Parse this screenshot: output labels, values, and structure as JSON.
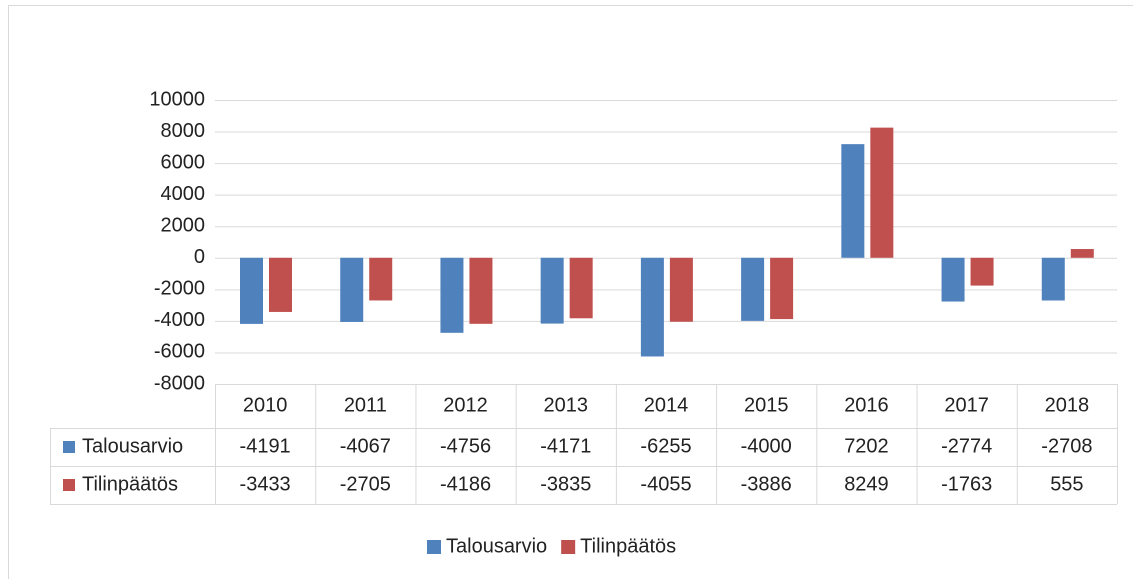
{
  "chart_data": {
    "type": "bar",
    "categories": [
      "2010",
      "2011",
      "2012",
      "2013",
      "2014",
      "2015",
      "2016",
      "2017",
      "2018"
    ],
    "series": [
      {
        "name": "Talousarvio",
        "color": "#4f81bd",
        "values": [
          -4191,
          -4067,
          -4756,
          -4171,
          -6255,
          -4000,
          7202,
          -2774,
          -2708
        ]
      },
      {
        "name": "Tilinpäätös",
        "color": "#c0504d",
        "values": [
          -3433,
          -2705,
          -4186,
          -3835,
          -4055,
          -3886,
          8249,
          -1763,
          555
        ]
      }
    ],
    "ylim": [
      -8000,
      10000
    ],
    "yticks": [
      -8000,
      -6000,
      -4000,
      -2000,
      0,
      2000,
      4000,
      6000,
      8000,
      10000
    ],
    "grid": true,
    "data_table": true,
    "legend": "bottom"
  }
}
